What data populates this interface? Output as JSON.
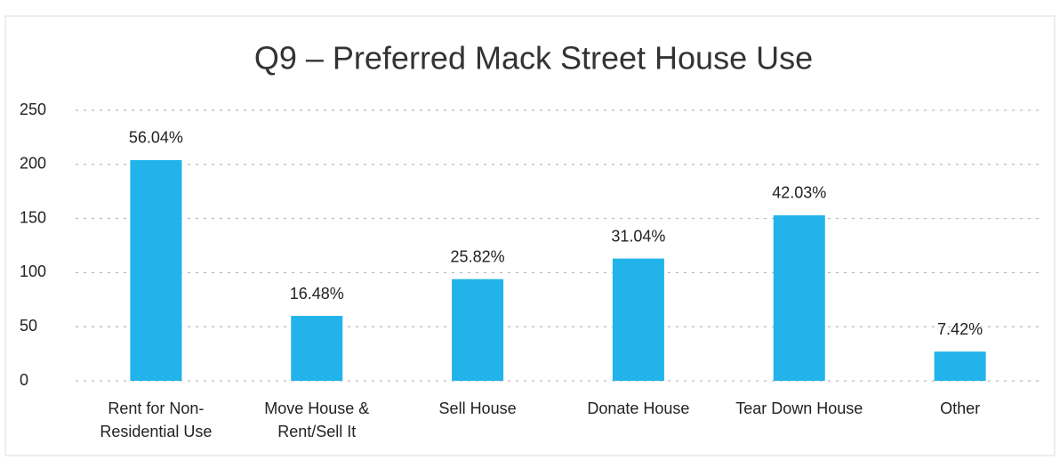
{
  "chart_data": {
    "type": "bar",
    "title": "Q9 – Preferred Mack Street House Use",
    "categories": [
      "Rent for Non-Residential Use",
      "Move House & Rent/Sell It",
      "Sell House",
      "Donate House",
      "Tear Down House",
      "Other"
    ],
    "values": [
      204,
      60,
      94,
      113,
      153,
      27
    ],
    "value_labels": [
      "56.04%",
      "16.48%",
      "25.82%",
      "31.04%",
      "42.03%",
      "7.42%"
    ],
    "color": "#22b3ea",
    "ylim": [
      0,
      250
    ],
    "yticks": [
      0,
      50,
      100,
      150,
      200,
      250
    ],
    "grid": true
  }
}
